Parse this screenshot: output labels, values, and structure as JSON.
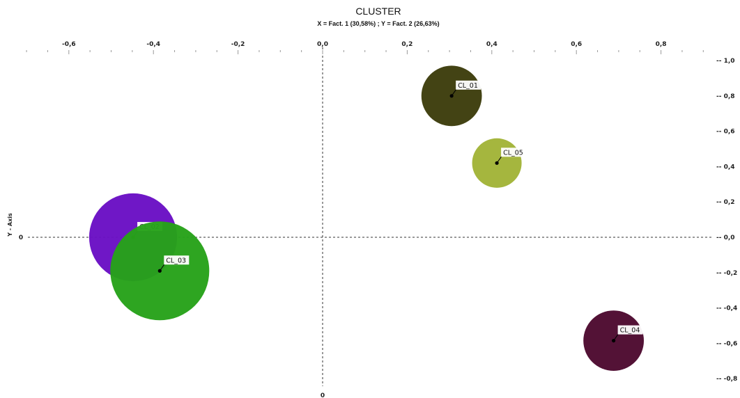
{
  "chart_data": {
    "type": "scatter",
    "title": "CLUSTER",
    "subtitle": "X = Fact. 1 (30,58%) ; Y = Fact. 2 (26,63%)",
    "ylabel": "Y - Axis",
    "xlim": [
      -0.76,
      0.95
    ],
    "ylim": [
      -0.87,
      1.0
    ],
    "x_ticks": [
      -0.6,
      -0.4,
      -0.2,
      0.0,
      0.2,
      0.4,
      0.6,
      0.8
    ],
    "x_tick_labels": [
      "-0,6",
      "-0,4",
      "-0,2",
      "0,0",
      "0,2",
      "0,4",
      "0,6",
      "0,8"
    ],
    "y_ticks": [
      1.0,
      0.8,
      0.6,
      0.4,
      0.2,
      0.0,
      -0.2,
      -0.4,
      -0.6,
      -0.8
    ],
    "y_tick_labels": [
      "-- 1,0",
      "-- 0,8",
      "-- 0,6",
      "-- 0,4",
      "-- 0,2",
      "-- 0,0",
      "-- -0,2",
      "-- -0,4",
      "-- -0,6",
      "-- -0,8"
    ],
    "left_zero_label": "0",
    "bottom_zero_label": "0",
    "grid": false,
    "points": [
      {
        "label": "CL_01",
        "x": 0.305,
        "y": 0.8,
        "size": 0.11,
        "color": "#3d3d0c"
      },
      {
        "label": "CL_05",
        "x": 0.412,
        "y": 0.42,
        "size": 0.09,
        "color": "#a2b438"
      },
      {
        "label": "CL_02",
        "x": -0.448,
        "y": 0.0,
        "size": 0.16,
        "color": "#6a10c4"
      },
      {
        "label": "CL_03",
        "x": -0.385,
        "y": -0.19,
        "size": 0.18,
        "color": "#27a21a"
      },
      {
        "label": "CL_04",
        "x": 0.688,
        "y": -0.585,
        "size": 0.11,
        "color": "#4d0a30"
      }
    ]
  }
}
